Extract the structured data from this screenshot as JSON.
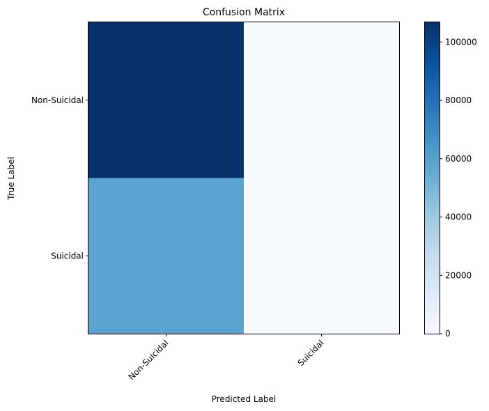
{
  "chart_data": {
    "type": "heatmap",
    "title": "Confusion Matrix",
    "xlabel": "Predicted Label",
    "ylabel": "True Label",
    "x_categories": [
      "Non-Suicidal",
      "Suicidal"
    ],
    "y_categories": [
      "Non-Suicidal",
      "Suicidal"
    ],
    "values": [
      [
        107000,
        0
      ],
      [
        58500,
        0
      ]
    ],
    "colormap": "Blues",
    "colorbar": {
      "range": [
        0,
        107000
      ],
      "ticks": [
        0,
        20000,
        40000,
        60000,
        80000,
        100000
      ],
      "tick_labels": [
        "0",
        "20000",
        "40000",
        "60000",
        "80000",
        "100000"
      ]
    },
    "cell_labels_shown": false,
    "grid": false
  }
}
